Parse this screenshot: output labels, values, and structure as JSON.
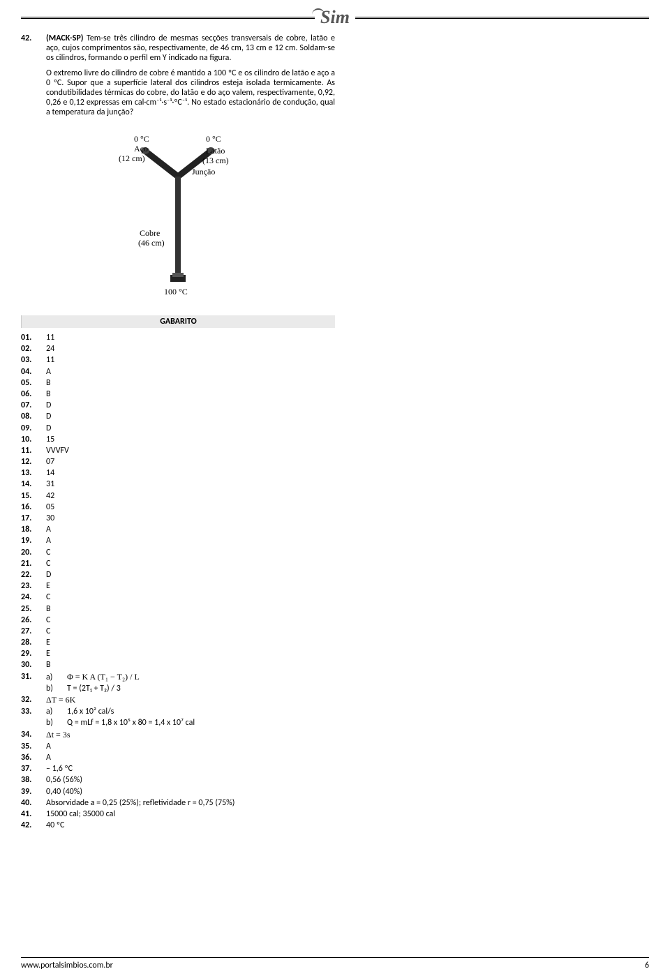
{
  "brand": "Sim",
  "question": {
    "number": "42.",
    "source": "(MACK-SP)",
    "p1_after_source": " Tem-se três cilindro de mesmas secções transversais de cobre, latão e aço, cujos comprimentos são, respectivamente, de 46 cm, 13 cm e 12 cm. Soldam-se os cilindros, formando o perfil em Y indicado na figura.",
    "p2": "O extremo livre do cilindro de cobre é mantido a 100 ºC e os cilindro de latão e aço a 0 ºC. Supor que a superfície lateral dos cilindros esteja isolada termicamente. As condutibilidades térmicas do cobre, do latão e do aço valem, respectivamente, 0,92, 0,26 e 0,12 expressas em cal·cm⁻¹·s⁻¹·ºC⁻¹. No estado estacionário de condução, qual a temperatura da junção?",
    "figure": {
      "aco_temp": "0 °C",
      "aco_label": "Aço",
      "aco_len": "(12 cm)",
      "latao_temp": "0 °C",
      "latao_label": "Latão",
      "latao_len": "(13 cm)",
      "juncao": "Junção",
      "cobre_label": "Cobre",
      "cobre_len": "(46 cm)",
      "base_temp": "100 °C"
    }
  },
  "gabarito_title": "GABARITO",
  "answers": [
    {
      "n": "01.",
      "v": "11"
    },
    {
      "n": "02.",
      "v": "24"
    },
    {
      "n": "03.",
      "v": "11"
    },
    {
      "n": "04.",
      "v": "A"
    },
    {
      "n": "05.",
      "v": "B"
    },
    {
      "n": "06.",
      "v": "B"
    },
    {
      "n": "07.",
      "v": "D"
    },
    {
      "n": "08.",
      "v": "D"
    },
    {
      "n": "09.",
      "v": "D"
    },
    {
      "n": "10.",
      "v": "15"
    },
    {
      "n": "11.",
      "v": "VVVFV"
    },
    {
      "n": "12.",
      "v": "07"
    },
    {
      "n": "13.",
      "v": "14"
    },
    {
      "n": "14.",
      "v": "31"
    },
    {
      "n": "15.",
      "v": "42"
    },
    {
      "n": "16.",
      "v": "05"
    },
    {
      "n": "17.",
      "v": "30"
    },
    {
      "n": "18.",
      "v": "A"
    },
    {
      "n": "19.",
      "v": "A"
    },
    {
      "n": "20.",
      "v": "C"
    },
    {
      "n": "21.",
      "v": "C"
    },
    {
      "n": "22.",
      "v": "D"
    },
    {
      "n": "23.",
      "v": "E"
    },
    {
      "n": "24.",
      "v": "C"
    },
    {
      "n": "25.",
      "v": "B"
    },
    {
      "n": "26.",
      "v": "C"
    },
    {
      "n": "27.",
      "v": "C"
    },
    {
      "n": "28.",
      "v": "E"
    },
    {
      "n": "29.",
      "v": "E"
    },
    {
      "n": "30.",
      "v": "B"
    }
  ],
  "a31": {
    "n": "31.",
    "a_label": "a)",
    "a_val": "Φ = K A (T₁ − T₂) / L",
    "b_label": "b)",
    "b_val": "T = (2T₁ + T₂) / 3"
  },
  "a32": {
    "n": "32.",
    "v": "ΔT = 6K"
  },
  "a33": {
    "n": "33.",
    "a_label": "a)",
    "a_val": "1,6 x 10² cal/s",
    "b_label": "b)",
    "b_val": "Q = mLf = 1,8 x 10⁵ x 80 = 1,4 x 10⁷ cal"
  },
  "a34": {
    "n": "34.",
    "v": "Δt = 3s"
  },
  "answers2": [
    {
      "n": "35.",
      "v": "A"
    },
    {
      "n": "36.",
      "v": "A"
    },
    {
      "n": "37.",
      "v": "– 1,6 ºC"
    },
    {
      "n": "38.",
      "v": "0,56 (56%)"
    },
    {
      "n": "39.",
      "v": "0,40 (40%)"
    },
    {
      "n": "40.",
      "v": "Absorvidade a = 0,25 (25%); refletividade r = 0,75 (75%)"
    },
    {
      "n": "41.",
      "v": "15000 cal; 35000 cal"
    },
    {
      "n": "42.",
      "v": "40 ºC"
    }
  ],
  "footer_url": "www.portalsimbios.com.br",
  "footer_page": "6"
}
